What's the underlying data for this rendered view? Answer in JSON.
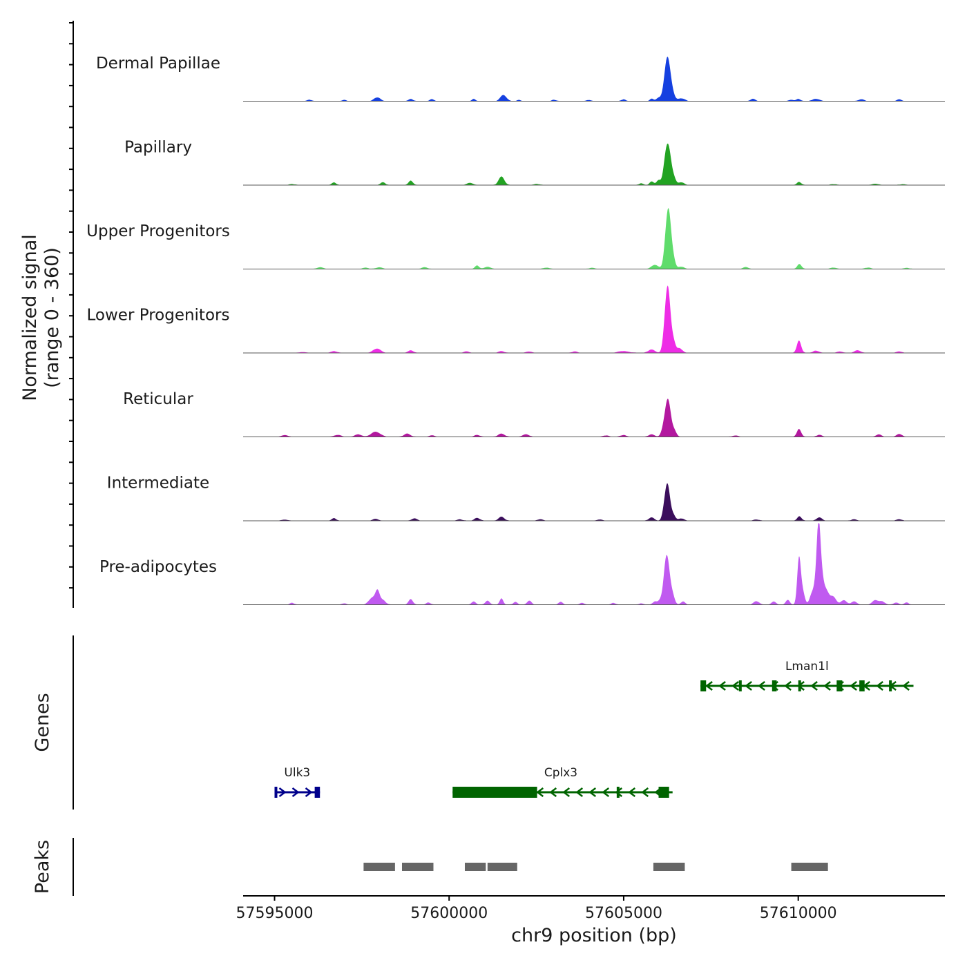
{
  "colors": {
    "axis": "#000000",
    "baseline": "#555555",
    "tick_label": "#4d4d4d",
    "peak": "#666666",
    "gene_plus": "#00008b",
    "gene_minus": "#006400"
  },
  "chart_data": {
    "type": "area",
    "title": "",
    "xlabel": "chr9 position (bp)",
    "ylabel_line1": "Normalized signal",
    "ylabel_line2": "(range 0 - 360)",
    "genes_label": "Genes",
    "peaks_label": "Peaks",
    "xlim": [
      57594100,
      57614200
    ],
    "x_ticks": [
      57595000,
      57600000,
      57605000,
      57610000
    ],
    "x_tick_labels": [
      "57595000",
      "57600000",
      "57605000",
      "57610000"
    ],
    "ylim": [
      0,
      360
    ],
    "signal_start": 57595000,
    "signal_end": 57613300,
    "tracks": [
      {
        "name": "Dermal Papillae",
        "color": "#1540e0",
        "peaks": [
          [
            57596000,
            6,
            60
          ],
          [
            57597000,
            6,
            50
          ],
          [
            57597900,
            12,
            70
          ],
          [
            57598000,
            10,
            60
          ],
          [
            57598900,
            10,
            60
          ],
          [
            57599500,
            8,
            60
          ],
          [
            57600700,
            10,
            50
          ],
          [
            57601500,
            8,
            70
          ],
          [
            57601570,
            22,
            80
          ],
          [
            57602000,
            6,
            50
          ],
          [
            57603000,
            6,
            60
          ],
          [
            57604000,
            5,
            60
          ],
          [
            57605000,
            8,
            60
          ],
          [
            57605800,
            10,
            50
          ],
          [
            57606000,
            15,
            70
          ],
          [
            57606200,
            45,
            70
          ],
          [
            57606270,
            165,
            85
          ],
          [
            57606420,
            15,
            60
          ],
          [
            57606650,
            12,
            100
          ],
          [
            57608700,
            10,
            70
          ],
          [
            57609800,
            6,
            60
          ],
          [
            57610000,
            10,
            60
          ],
          [
            57610500,
            10,
            100
          ],
          [
            57611800,
            8,
            80
          ],
          [
            57612900,
            8,
            60
          ]
        ]
      },
      {
        "name": "Papillary",
        "color": "#22a322",
        "peaks": [
          [
            57595500,
            4,
            80
          ],
          [
            57596700,
            12,
            60
          ],
          [
            57598100,
            12,
            70
          ],
          [
            57598900,
            20,
            60
          ],
          [
            57600600,
            10,
            80
          ],
          [
            57601500,
            38,
            80
          ],
          [
            57602500,
            5,
            80
          ],
          [
            57605500,
            8,
            60
          ],
          [
            57605800,
            15,
            60
          ],
          [
            57606000,
            22,
            60
          ],
          [
            57606180,
            55,
            60
          ],
          [
            57606280,
            165,
            80
          ],
          [
            57606440,
            25,
            60
          ],
          [
            57606650,
            12,
            80
          ],
          [
            57610020,
            14,
            60
          ],
          [
            57611000,
            4,
            80
          ],
          [
            57612200,
            6,
            80
          ],
          [
            57613000,
            4,
            80
          ]
        ]
      },
      {
        "name": "Upper Progenitors",
        "color": "#5fdc6b",
        "peaks": [
          [
            57596300,
            8,
            80
          ],
          [
            57597600,
            6,
            80
          ],
          [
            57598000,
            8,
            80
          ],
          [
            57599300,
            8,
            80
          ],
          [
            57600800,
            15,
            60
          ],
          [
            57601100,
            10,
            80
          ],
          [
            57602800,
            6,
            80
          ],
          [
            57604100,
            5,
            80
          ],
          [
            57605900,
            18,
            100
          ],
          [
            57606200,
            70,
            60
          ],
          [
            57606290,
            240,
            70
          ],
          [
            57606420,
            40,
            60
          ],
          [
            57606650,
            10,
            80
          ],
          [
            57608500,
            8,
            80
          ],
          [
            57610030,
            22,
            60
          ],
          [
            57611000,
            6,
            80
          ],
          [
            57612000,
            6,
            80
          ],
          [
            57613100,
            5,
            80
          ]
        ]
      },
      {
        "name": "Lower Progenitors",
        "color": "#ee2ce6",
        "peaks": [
          [
            57595800,
            4,
            80
          ],
          [
            57596700,
            8,
            80
          ],
          [
            57597900,
            14,
            100
          ],
          [
            57598000,
            8,
            80
          ],
          [
            57598900,
            12,
            70
          ],
          [
            57600500,
            6,
            80
          ],
          [
            57601500,
            8,
            80
          ],
          [
            57602300,
            6,
            80
          ],
          [
            57603600,
            6,
            80
          ],
          [
            57605000,
            8,
            150
          ],
          [
            57605800,
            14,
            100
          ],
          [
            57606180,
            70,
            60
          ],
          [
            57606270,
            270,
            70
          ],
          [
            57606420,
            50,
            60
          ],
          [
            57606600,
            20,
            80
          ],
          [
            57610020,
            55,
            60
          ],
          [
            57610500,
            10,
            80
          ],
          [
            57611200,
            6,
            80
          ],
          [
            57611700,
            12,
            80
          ],
          [
            57612900,
            6,
            80
          ]
        ]
      },
      {
        "name": "Reticular",
        "color": "#b3189f",
        "peaks": [
          [
            57595300,
            8,
            80
          ],
          [
            57596800,
            8,
            100
          ],
          [
            57597400,
            10,
            100
          ],
          [
            57597900,
            22,
            130
          ],
          [
            57598800,
            14,
            90
          ],
          [
            57599500,
            6,
            80
          ],
          [
            57600800,
            8,
            80
          ],
          [
            57601500,
            14,
            90
          ],
          [
            57602200,
            10,
            100
          ],
          [
            57604500,
            6,
            80
          ],
          [
            57605000,
            8,
            80
          ],
          [
            57605800,
            10,
            90
          ],
          [
            57606150,
            30,
            70
          ],
          [
            57606270,
            160,
            80
          ],
          [
            57606450,
            25,
            60
          ],
          [
            57608200,
            6,
            80
          ],
          [
            57610020,
            35,
            60
          ],
          [
            57610600,
            8,
            80
          ],
          [
            57612300,
            10,
            80
          ],
          [
            57612900,
            12,
            80
          ]
        ]
      },
      {
        "name": "Intermediate",
        "color": "#3b0e5c",
        "peaks": [
          [
            57595300,
            5,
            80
          ],
          [
            57596700,
            12,
            60
          ],
          [
            57597900,
            8,
            80
          ],
          [
            57599000,
            10,
            80
          ],
          [
            57600300,
            6,
            80
          ],
          [
            57600800,
            12,
            80
          ],
          [
            57601500,
            18,
            80
          ],
          [
            57602600,
            6,
            80
          ],
          [
            57604300,
            5,
            80
          ],
          [
            57605800,
            14,
            80
          ],
          [
            57606170,
            40,
            60
          ],
          [
            57606260,
            150,
            70
          ],
          [
            57606420,
            25,
            60
          ],
          [
            57606650,
            10,
            80
          ],
          [
            57608800,
            5,
            80
          ],
          [
            57610030,
            20,
            60
          ],
          [
            57610600,
            14,
            80
          ],
          [
            57611600,
            6,
            80
          ],
          [
            57612900,
            6,
            80
          ]
        ]
      },
      {
        "name": "Pre-adipocytes",
        "color": "#c05af0",
        "peaks": [
          [
            57595500,
            8,
            60
          ],
          [
            57597000,
            6,
            60
          ],
          [
            57597800,
            30,
            100
          ],
          [
            57597950,
            55,
            60
          ],
          [
            57598100,
            20,
            80
          ],
          [
            57598900,
            25,
            60
          ],
          [
            57599400,
            10,
            60
          ],
          [
            57600700,
            14,
            60
          ],
          [
            57601100,
            18,
            60
          ],
          [
            57601500,
            28,
            50
          ],
          [
            57601900,
            12,
            60
          ],
          [
            57602300,
            18,
            60
          ],
          [
            57603200,
            12,
            60
          ],
          [
            57603800,
            8,
            60
          ],
          [
            57604700,
            8,
            60
          ],
          [
            57605500,
            6,
            60
          ],
          [
            57605900,
            14,
            60
          ],
          [
            57606050,
            20,
            60
          ],
          [
            57606180,
            90,
            60
          ],
          [
            57606260,
            170,
            70
          ],
          [
            57606400,
            40,
            60
          ],
          [
            57606700,
            14,
            60
          ],
          [
            57608800,
            15,
            80
          ],
          [
            57609300,
            14,
            60
          ],
          [
            57609700,
            20,
            60
          ],
          [
            57610020,
            200,
            50
          ],
          [
            57610120,
            60,
            60
          ],
          [
            57610400,
            50,
            70
          ],
          [
            57610520,
            80,
            60
          ],
          [
            57610580,
            225,
            50
          ],
          [
            57610640,
            150,
            70
          ],
          [
            57610800,
            60,
            80
          ],
          [
            57611000,
            35,
            80
          ],
          [
            57611300,
            20,
            80
          ],
          [
            57611600,
            14,
            80
          ],
          [
            57612200,
            20,
            80
          ],
          [
            57612400,
            14,
            80
          ],
          [
            57612800,
            8,
            80
          ],
          [
            57613100,
            10,
            60
          ]
        ]
      }
    ],
    "genes": [
      {
        "name": "Ulk3",
        "strand": "+",
        "start": 57595000,
        "end": 57596300,
        "row": 2,
        "label_x": 57595650,
        "exons": [
          [
            57595000,
            57595050
          ],
          [
            57596150,
            57596300
          ]
        ]
      },
      {
        "name": "Cplx3",
        "strand": "-",
        "start": 57600100,
        "end": 57606400,
        "row": 2,
        "label_x": 57603200,
        "exons": [
          [
            57600100,
            57602520
          ],
          [
            57604800,
            57604880
          ],
          [
            57606000,
            57606300
          ]
        ]
      },
      {
        "name": "Lman1l",
        "strand": "-",
        "start": 57607200,
        "end": 57613300,
        "row": 1,
        "label_x": 57610250,
        "exons": [
          [
            57607200,
            57607360
          ],
          [
            57608300,
            57608380
          ],
          [
            57609250,
            57609380
          ],
          [
            57610000,
            57610060
          ],
          [
            57611100,
            57611260
          ],
          [
            57611750,
            57611900
          ],
          [
            57612600,
            57612650
          ]
        ]
      }
    ],
    "peak_regions": [
      [
        57597550,
        57598450
      ],
      [
        57598650,
        57599550
      ],
      [
        57600450,
        57601050
      ],
      [
        57601100,
        57601950
      ],
      [
        57605850,
        57606750
      ],
      [
        57609800,
        57610850
      ]
    ]
  }
}
